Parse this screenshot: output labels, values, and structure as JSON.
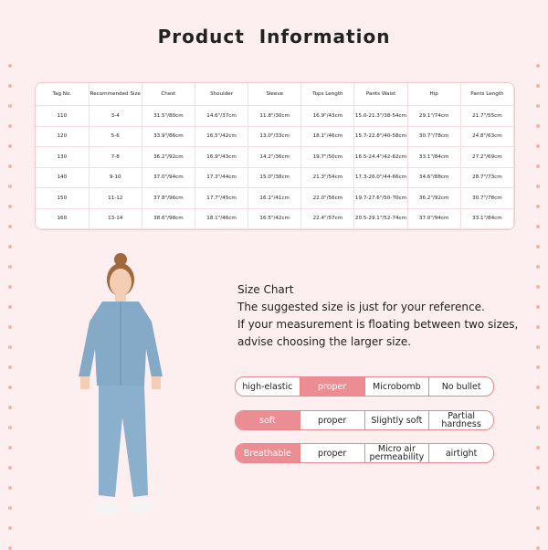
{
  "header": {
    "title": "Product  Information"
  },
  "table": {
    "columns": [
      "Tag No.",
      "Recommended Size",
      "Chest",
      "Shoulder",
      "Sleeve",
      "Tops Length",
      "Pants Waist",
      "Hip",
      "Pants Length"
    ],
    "rows": [
      [
        "110",
        "3-4",
        "31.5\"/80cm",
        "14.6\"/37cm",
        "11.8\"/30cm",
        "16.9\"/43cm",
        "15.0-21.3\"/38-54cm",
        "29.1\"/74cm",
        "21.7\"/55cm"
      ],
      [
        "120",
        "5-6",
        "33.9\"/86cm",
        "16.5\"/42cm",
        "13.0\"/33cm",
        "18.1\"/46cm",
        "15.7-22.8\"/40-58cm",
        "30.7\"/78cm",
        "24.8\"/63cm"
      ],
      [
        "130",
        "7-8",
        "36.2\"/92cm",
        "16.9\"/43cm",
        "14.2\"/36cm",
        "19.7\"/50cm",
        "16.5-24.4\"/42-62cm",
        "33.1\"/84cm",
        "27.2\"/69cm"
      ],
      [
        "140",
        "9-10",
        "37.0\"/94cm",
        "17.3\"/44cm",
        "15.0\"/38cm",
        "21.3\"/54cm",
        "17.3-26.0\"/44-66cm",
        "34.6\"/88cm",
        "28.7\"/73cm"
      ],
      [
        "150",
        "11-12",
        "37.8\"/96cm",
        "17.7\"/45cm",
        "16.1\"/41cm",
        "22.0\"/56cm",
        "19.7-27.6\"/50-70cm",
        "36.2\"/92cm",
        "30.7\"/78cm"
      ],
      [
        "160",
        "13-14",
        "38.6\"/98cm",
        "18.1\"/46cm",
        "16.5\"/42cm",
        "22.4\"/57cm",
        "20.5-29.1\"/52-74cm",
        "37.0\"/94cm",
        "33.1\"/84cm"
      ]
    ]
  },
  "note": {
    "heading": "Size Chart",
    "lines": [
      "The suggested size is just for your reference.",
      "If your measurement is floating between two sizes,",
      "advise choosing the larger size."
    ]
  },
  "features": [
    [
      "high-elastic",
      "proper",
      "Microbomb",
      "No bullet"
    ],
    [
      "soft",
      "proper",
      "Slightly soft",
      "Partial hardness"
    ],
    [
      "Breathable",
      "proper",
      "Micro air permeability",
      "airtight"
    ]
  ]
}
